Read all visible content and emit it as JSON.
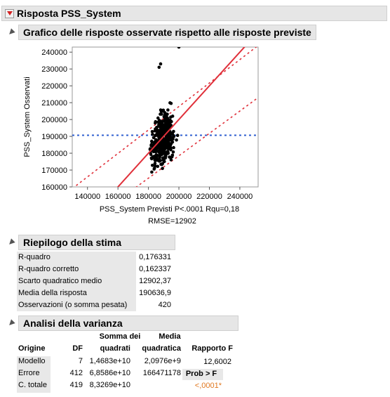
{
  "main": {
    "title": "Risposta PSS_System",
    "plot_section_title": "Grafico delle risposte osservate rispetto alle risposte previste"
  },
  "chart_data": {
    "type": "scatter",
    "title": "",
    "xlabel": "PSS_System Previsti P<.0001 Rqu=0,18",
    "xlabel2": "RMSE=12902",
    "ylabel": "PSS_System Osservati",
    "xlim": [
      130000,
      252000
    ],
    "ylim": [
      160000,
      243000
    ],
    "x_ticks": [
      "140000",
      "160000",
      "180000",
      "200000",
      "220000",
      "240000"
    ],
    "y_ticks": [
      "160000",
      "170000",
      "180000",
      "190000",
      "200000",
      "210000",
      "220000",
      "230000",
      "240000"
    ],
    "mean_line": 190637,
    "fit_line": [
      [
        150000,
        150000
      ],
      [
        255000,
        255000
      ]
    ],
    "confidence_lines": [
      [
        [
          130000,
          159000
        ],
        [
          255000,
          246000
        ]
      ],
      [
        [
          130000,
          132000
        ],
        [
          255000,
          215000
        ]
      ]
    ],
    "colors": {
      "points": "#000000",
      "fit": "#e0303a",
      "confidence": "#e0303a",
      "mean": "#2f5fd0"
    },
    "points_note": "approx. 420 points clustered x 175000-205000, y 163000-243000"
  },
  "summary": {
    "title": "Riepilogo della stima",
    "rows": [
      {
        "label": "R-quadro",
        "value": "0,176331"
      },
      {
        "label": "R-quadro corretto",
        "value": "0,162337"
      },
      {
        "label": "Scarto quadratico medio",
        "value": "12902,37"
      },
      {
        "label": "Media della risposta",
        "value": "190636,9"
      },
      {
        "label": "Osservazioni (o somma pesata)",
        "value": "420"
      }
    ]
  },
  "anova": {
    "title": "Analisi della varianza",
    "headers": {
      "origine": "Origine",
      "df": "DF",
      "ss_top": "Somma dei",
      "ss_bottom": "quadrati",
      "ms_top": "Media",
      "ms_bottom": "quadratica",
      "f": "Rapporto F"
    },
    "rows": [
      {
        "source": "Modello",
        "df": "7",
        "ss": "1,4683e+10",
        "ms": "2,0976e+9",
        "f": "12,6002"
      },
      {
        "source": "Errore",
        "df": "412",
        "ss": "6,8586e+10",
        "ms": "166471178",
        "f": "Prob > F"
      },
      {
        "source": "C. totale",
        "df": "419",
        "ss": "8,3269e+10",
        "ms": "",
        "f": "<,0001*"
      }
    ],
    "prob_color": "#e07820"
  }
}
